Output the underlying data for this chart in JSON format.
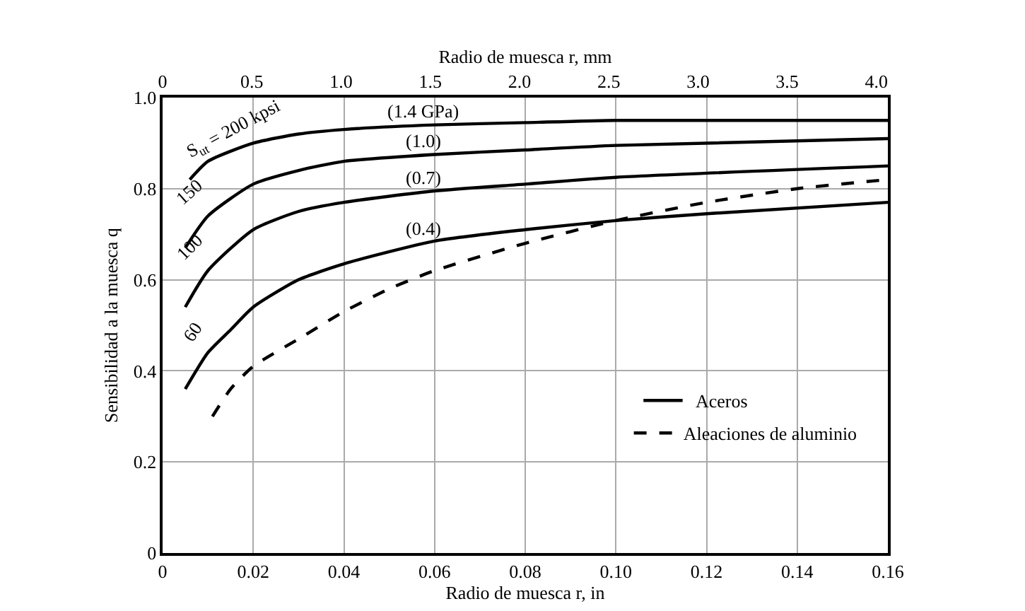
{
  "chart_data": {
    "type": "line",
    "xlabel": "Radio de muesca r, in",
    "x2label": "Radio de muesca r, mm",
    "ylabel": "Sensibilidad a la muesca q",
    "xlim": [
      0,
      0.16
    ],
    "xticks": [
      0,
      0.02,
      0.04,
      0.06,
      0.08,
      {
        "value": 0.1,
        "label": "0.10"
      },
      0.12,
      0.14,
      0.16
    ],
    "x2lim": [
      0,
      4.064
    ],
    "x2ticks": [
      0,
      0.5,
      {
        "value": 1,
        "label": "1.0"
      },
      1.5,
      {
        "value": 2,
        "label": "2.0"
      },
      2.5,
      {
        "value": 3,
        "label": "3.0"
      },
      3.5,
      {
        "value": 4,
        "label": "4.0"
      }
    ],
    "ylim": [
      0,
      1
    ],
    "yticks": [
      0,
      0.2,
      0.4,
      0.6,
      0.8,
      {
        "value": 1,
        "label": "1.0"
      }
    ],
    "grid": true,
    "legend": "bottom right",
    "series": [
      {
        "name": "S$_{ut}$ = 200 kpsi",
        "color": "#000000",
        "line_style": "solid",
        "x": [
          0.006,
          0.01,
          0.02,
          0.03,
          0.04,
          0.06,
          0.08,
          0.1,
          0.16
        ],
        "values": [
          0.82,
          0.86,
          0.9,
          0.92,
          0.93,
          0.94,
          0.945,
          0.95,
          0.95
        ]
      },
      {
        "name": "150",
        "color": "#000000",
        "line_style": "solid",
        "x": [
          0.005,
          0.01,
          0.02,
          0.03,
          0.04,
          0.06,
          0.08,
          0.1,
          0.16
        ],
        "values": [
          0.67,
          0.74,
          0.81,
          0.84,
          0.86,
          0.875,
          0.885,
          0.895,
          0.91
        ]
      },
      {
        "name": "100",
        "color": "#000000",
        "line_style": "solid",
        "x": [
          0.005,
          0.01,
          0.02,
          0.03,
          0.04,
          0.06,
          0.08,
          0.1,
          0.16
        ],
        "values": [
          0.54,
          0.62,
          0.71,
          0.75,
          0.77,
          0.795,
          0.81,
          0.825,
          0.85
        ]
      },
      {
        "name": "60",
        "color": "#000000",
        "line_style": "solid",
        "x": [
          0.005,
          0.01,
          0.015,
          0.02,
          0.03,
          0.04,
          0.06,
          0.08,
          0.1,
          0.12,
          0.16
        ],
        "values": [
          0.36,
          0.44,
          0.49,
          0.54,
          0.6,
          0.635,
          0.685,
          0.71,
          0.73,
          0.745,
          0.77
        ]
      },
      {
        "name": "Aleaciones de aluminio",
        "color": "#000000",
        "line_style": "dashed",
        "x": [
          0.011,
          0.015,
          0.02,
          0.03,
          0.04,
          0.05,
          0.06,
          0.08,
          0.1,
          0.12,
          0.14,
          0.16
        ],
        "values": [
          0.3,
          0.36,
          0.41,
          0.47,
          0.53,
          0.58,
          0.62,
          0.68,
          0.73,
          0.77,
          0.8,
          0.82
        ]
      }
    ],
    "annotations": [
      "(1.4 GPa)",
      "(1.0)",
      "(0.7)",
      "(0.4)",
      "Aceros"
    ]
  }
}
